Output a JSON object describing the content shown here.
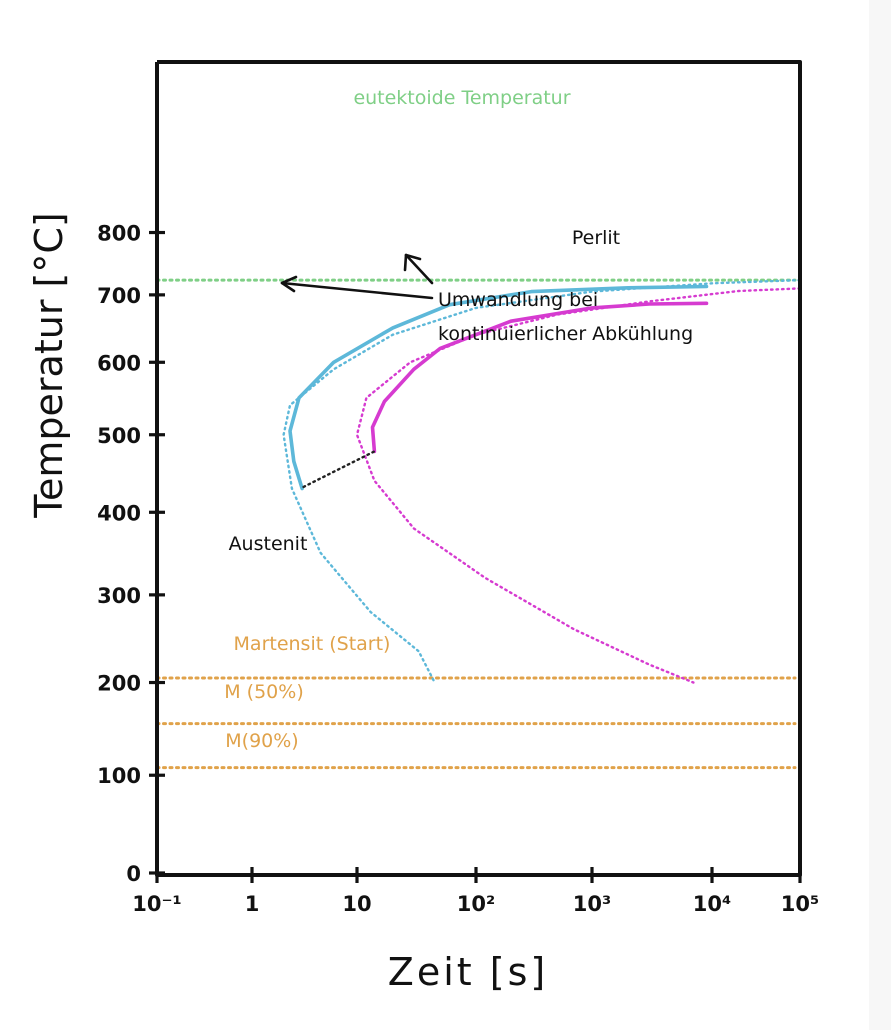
{
  "chart_data": {
    "type": "line",
    "xlabel": "Zeit [s]",
    "ylabel": "Temperatur [°C]",
    "xscale": "log",
    "xlim": [
      0.1,
      100000
    ],
    "ylim": [
      0,
      800
    ],
    "x_ticks": [
      "10⁻¹",
      "1",
      "10",
      "10²",
      "10³",
      "10⁴",
      "10⁵"
    ],
    "y_ticks": [
      "0",
      "100",
      "200",
      "300",
      "400",
      "500",
      "600",
      "700",
      "800"
    ],
    "grid": false,
    "region_labels": [
      "Perlit",
      "Austenit"
    ],
    "annotation": {
      "line1": "Umwandlung bei",
      "line2": "kontinuierlicher Abkühlung"
    },
    "horizontal_lines": [
      {
        "name": "eutektoide Temperatur",
        "y": 723,
        "color": "#7fcf86"
      },
      {
        "name": "Martensit (Start)",
        "y": 205,
        "color": "#e0a24a"
      },
      {
        "name": "M (50%)",
        "y": 155,
        "color": "#e0a24a"
      },
      {
        "name": "M(90%)",
        "y": 108,
        "color": "#e0a24a"
      }
    ],
    "series": [
      {
        "id": "blue-dotted",
        "color": "#5db8d9",
        "style": "dotted",
        "points": [
          [
            100000,
            723
          ],
          [
            10000,
            718
          ],
          [
            1000,
            705
          ],
          [
            100,
            680
          ],
          [
            20,
            640
          ],
          [
            6,
            590
          ],
          [
            2.3,
            540
          ],
          [
            2,
            500
          ],
          [
            2.4,
            430
          ],
          [
            4.5,
            350
          ],
          [
            13,
            280
          ],
          [
            33,
            235
          ],
          [
            45,
            200
          ]
        ]
      },
      {
        "id": "blue-solid",
        "color": "#5db8d9",
        "style": "solid",
        "points": [
          [
            9000,
            713
          ],
          [
            2000,
            711
          ],
          [
            300,
            705
          ],
          [
            60,
            685
          ],
          [
            20,
            650
          ],
          [
            6,
            600
          ],
          [
            2.8,
            550
          ],
          [
            2.3,
            505
          ],
          [
            2.5,
            465
          ],
          [
            3,
            430
          ]
        ]
      },
      {
        "id": "magenta-dotted",
        "color": "#d63bd0",
        "style": "dotted",
        "points": [
          [
            100000,
            710
          ],
          [
            20000,
            706
          ],
          [
            3000,
            690
          ],
          [
            500,
            670
          ],
          [
            100,
            640
          ],
          [
            28,
            600
          ],
          [
            12,
            550
          ],
          [
            10,
            500
          ],
          [
            14,
            440
          ],
          [
            30,
            380
          ],
          [
            120,
            320
          ],
          [
            700,
            260
          ],
          [
            3000,
            220
          ],
          [
            7000,
            200
          ]
        ]
      },
      {
        "id": "magenta-solid",
        "color": "#d63bd0",
        "style": "solid",
        "points": [
          [
            9000,
            687
          ],
          [
            3000,
            686
          ],
          [
            1000,
            680
          ],
          [
            200,
            660
          ],
          [
            50,
            620
          ],
          [
            30,
            590
          ],
          [
            17,
            545
          ],
          [
            13.5,
            510
          ],
          [
            14,
            478
          ]
        ]
      },
      {
        "id": "connector",
        "color": "#222222",
        "style": "dotted",
        "points": [
          [
            3.1,
            432
          ],
          [
            14,
            478
          ]
        ]
      }
    ]
  }
}
